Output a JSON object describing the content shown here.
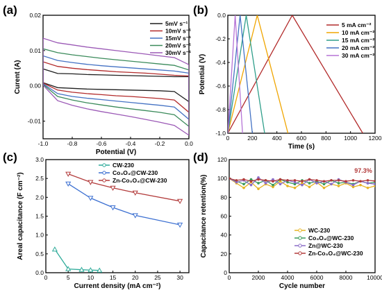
{
  "chart_data": [
    {
      "panel": "(a)",
      "type": "line",
      "xlabel": "Potential (V)",
      "ylabel": "Curent (A)",
      "xlim": [
        -1.0,
        0.0
      ],
      "ylim": [
        -0.015,
        0.02
      ],
      "xticks": [
        "-1.0",
        "-0.8",
        "-0.6",
        "-0.4",
        "-0.2",
        "0.0"
      ],
      "yticks": [
        "-0.01",
        "0.00",
        "0.01",
        "0.02"
      ],
      "legend": "top-right",
      "series": [
        {
          "name": "5mV s⁻¹",
          "color": "#1f1f1f",
          "upper": [
            0.0048,
            0.0035,
            0.0034,
            0.0032,
            0.0031,
            0.003,
            0.0029,
            0.0028,
            0.0027,
            0.0026,
            0.0026
          ],
          "lower": [
            0.0009,
            -0.0005,
            -0.0007,
            -0.0009,
            -0.001,
            -0.0011,
            -0.0012,
            -0.0013,
            -0.0014,
            -0.0016,
            -0.0045
          ]
        },
        {
          "name": "10mV s⁻¹",
          "color": "#b22a2a",
          "upper": [
            0.0068,
            0.0055,
            0.005,
            0.0046,
            0.0043,
            0.004,
            0.0038,
            0.0036,
            0.0033,
            0.003,
            0.0028
          ],
          "lower": [
            0.0008,
            -0.0012,
            -0.0018,
            -0.0022,
            -0.0025,
            -0.0028,
            -0.003,
            -0.0033,
            -0.0036,
            -0.004,
            -0.0075
          ]
        },
        {
          "name": "15mV s⁻¹",
          "color": "#4472c4",
          "upper": [
            0.0085,
            0.0072,
            0.0066,
            0.0061,
            0.0057,
            0.0054,
            0.0051,
            0.0048,
            0.0045,
            0.0042,
            0.0036
          ],
          "lower": [
            0.0006,
            -0.0022,
            -0.003,
            -0.0035,
            -0.0039,
            -0.0043,
            -0.0047,
            -0.0051,
            -0.0055,
            -0.006,
            -0.0095
          ]
        },
        {
          "name": "20mV s⁻¹",
          "color": "#3a8a5a",
          "upper": [
            0.0105,
            0.0094,
            0.0088,
            0.0083,
            0.0078,
            0.0074,
            0.007,
            0.0066,
            0.0062,
            0.0058,
            0.0045
          ],
          "lower": [
            0.0004,
            -0.003,
            -0.004,
            -0.0048,
            -0.0054,
            -0.006,
            -0.0065,
            -0.007,
            -0.0075,
            -0.0082,
            -0.0115
          ]
        },
        {
          "name": "30mV s⁻¹",
          "color": "#9b59b6",
          "upper": [
            0.0135,
            0.0122,
            0.0116,
            0.011,
            0.0105,
            0.01,
            0.0095,
            0.009,
            0.0085,
            0.008,
            0.006
          ],
          "lower": [
            0.0002,
            -0.0042,
            -0.0055,
            -0.0065,
            -0.0073,
            -0.008,
            -0.0087,
            -0.0095,
            -0.0103,
            -0.0112,
            -0.014
          ]
        }
      ]
    },
    {
      "panel": "(b)",
      "type": "line",
      "xlabel": "Time (s)",
      "ylabel": "Potential (V)",
      "xlim": [
        0,
        1200
      ],
      "ylim": [
        -1.0,
        0.0
      ],
      "xticks": [
        "0",
        "200",
        "400",
        "600",
        "800",
        "1000",
        "1200"
      ],
      "yticks": [
        "-1.0",
        "-0.8",
        "-0.6",
        "-0.4",
        "-0.2",
        "0.0"
      ],
      "legend": "right",
      "series": [
        {
          "name": "5 mA cm⁻²",
          "color": "#b22a2a",
          "x": [
            0,
            525,
            1100
          ],
          "y": [
            -1.0,
            0.0,
            -1.0
          ]
        },
        {
          "name": "10 mA cm⁻²",
          "color": "#f0a500",
          "x": [
            0,
            240,
            490
          ],
          "y": [
            -1.0,
            0.0,
            -1.0
          ]
        },
        {
          "name": "15 mA cm⁻²",
          "color": "#2e9e8a",
          "x": [
            0,
            150,
            300
          ],
          "y": [
            -1.0,
            0.0,
            -1.0
          ]
        },
        {
          "name": "20 mA cm⁻²",
          "color": "#4472c4",
          "x": [
            0,
            100,
            200
          ],
          "y": [
            -1.0,
            0.0,
            -1.0
          ]
        },
        {
          "name": "30 mA cm⁻²",
          "color": "#b573d6",
          "x": [
            0,
            60,
            120
          ],
          "y": [
            -1.0,
            0.0,
            -1.0
          ]
        }
      ]
    },
    {
      "panel": "(c)",
      "type": "line",
      "xlabel": "Current density (mA cm⁻²)",
      "ylabel": "Areal capacitance (F cm⁻²)",
      "xlim": [
        0,
        32
      ],
      "ylim": [
        0.0,
        3.0
      ],
      "xticks": [
        "0",
        "5",
        "10",
        "15",
        "20",
        "25",
        "30"
      ],
      "yticks": [
        "0.0",
        "0.5",
        "1.0",
        "1.5",
        "2.0",
        "2.5",
        "3.0"
      ],
      "legend": "top-right",
      "series": [
        {
          "name": "CW-230",
          "color": "#2eab9a",
          "marker": "triangle-up",
          "x": [
            2,
            5,
            8,
            10,
            12
          ],
          "y": [
            0.62,
            0.1,
            0.08,
            0.07,
            0.06
          ]
        },
        {
          "name": "Co₃O₄@CW-230",
          "color": "#3b6fd1",
          "marker": "triangle-down",
          "x": [
            5,
            10,
            15,
            20,
            30
          ],
          "y": [
            2.36,
            1.98,
            1.73,
            1.52,
            1.27
          ]
        },
        {
          "name": "Zn-Co₃O₄@CW-230",
          "color": "#b23a3a",
          "marker": "triangle-down",
          "x": [
            5,
            10,
            15,
            20,
            30
          ],
          "y": [
            2.62,
            2.4,
            2.25,
            2.12,
            1.9
          ]
        }
      ]
    },
    {
      "panel": "(d)",
      "type": "line",
      "xlabel": "Cycle number",
      "ylabel": "Capacitance retention(%)",
      "xlim": [
        0,
        10000
      ],
      "ylim": [
        0,
        120
      ],
      "xticks": [
        "0",
        "2000",
        "4000",
        "6000",
        "8000",
        "10000"
      ],
      "yticks": [
        "0",
        "20",
        "40",
        "60",
        "80",
        "100",
        "120"
      ],
      "legend": "bottom-right",
      "annotation": "97.3%",
      "series": [
        {
          "name": "WC-230",
          "color": "#e6b422",
          "x": [
            0,
            500,
            1000,
            1500,
            2000,
            2500,
            3000,
            3500,
            4000,
            4500,
            5000,
            5500,
            6000,
            6500,
            7000,
            7500,
            8000,
            8500,
            9000,
            9500,
            10000
          ],
          "y": [
            100,
            95,
            90,
            96,
            89,
            94,
            91,
            97,
            92,
            90,
            95,
            91,
            96,
            90,
            94,
            92,
            95,
            91,
            93,
            90,
            92
          ]
        },
        {
          "name": "Co₃O₄@WC-230",
          "color": "#3a9a5a",
          "x": [
            0,
            500,
            1000,
            1500,
            2000,
            2500,
            3000,
            3500,
            4000,
            4500,
            5000,
            5500,
            6000,
            6500,
            7000,
            7500,
            8000,
            8500,
            9000,
            9500,
            10000
          ],
          "y": [
            100,
            97,
            94,
            99,
            95,
            98,
            93,
            99,
            96,
            94,
            98,
            95,
            97,
            94,
            98,
            95,
            96,
            94,
            97,
            95,
            96
          ]
        },
        {
          "name": "Zn@WC-230",
          "color": "#8a6cc7",
          "x": [
            0,
            500,
            1000,
            1500,
            2000,
            2500,
            3000,
            3500,
            4000,
            4500,
            5000,
            5500,
            6000,
            6500,
            7000,
            7500,
            8000,
            8500,
            9000,
            9500,
            10000
          ],
          "y": [
            100,
            96,
            98,
            93,
            101,
            95,
            99,
            94,
            98,
            96,
            93,
            99,
            95,
            97,
            94,
            99,
            96,
            93,
            97,
            95,
            94
          ]
        },
        {
          "name": "Zn-Co₃O₄@WC-230",
          "color": "#b23a3a",
          "x": [
            0,
            500,
            1000,
            1500,
            2000,
            2500,
            3000,
            3500,
            4000,
            4500,
            5000,
            5500,
            6000,
            6500,
            7000,
            7500,
            8000,
            8500,
            9000,
            9500,
            10000
          ],
          "y": [
            100,
            98,
            99,
            97,
            99,
            98,
            97,
            99,
            98,
            98,
            97,
            99,
            98,
            97,
            98,
            98,
            97,
            98,
            97,
            98,
            97.3
          ]
        }
      ]
    }
  ]
}
